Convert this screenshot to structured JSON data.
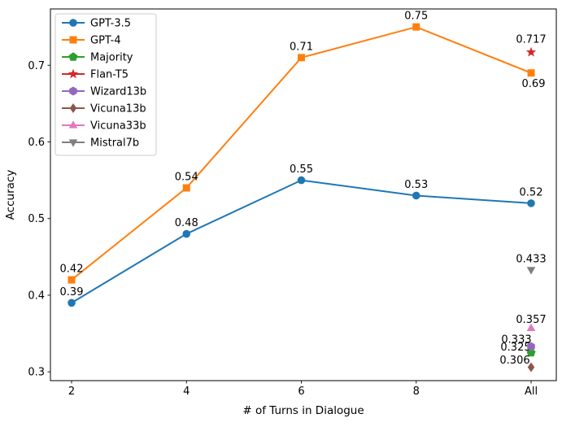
{
  "figure": {
    "background": "#ffffff",
    "spine_color": "#000000"
  },
  "chart_data": {
    "type": "line",
    "title": "",
    "xlabel": "# of Turns in Dialogue",
    "ylabel": "Accuracy",
    "x_tick_labels": [
      "2",
      "4",
      "6",
      "8",
      "All"
    ],
    "y_tick_labels": [
      "0.3",
      "0.4",
      "0.5",
      "0.6",
      "0.7"
    ],
    "y_tick_values": [
      0.3,
      0.4,
      0.5,
      0.6,
      0.7
    ],
    "ylim": [
      0.2885,
      0.7735
    ],
    "grid": false,
    "legend_position": "upper-left",
    "series": [
      {
        "name": "GPT-3.5",
        "color": "#1f77b4",
        "marker": "circle",
        "line": true,
        "x": [
          0,
          1,
          2,
          3,
          4
        ],
        "values": [
          0.39,
          0.48,
          0.55,
          0.53,
          0.52
        ],
        "labels": [
          "0.39",
          "0.48",
          "0.55",
          "0.53",
          "0.52"
        ],
        "label_offsets": {}
      },
      {
        "name": "GPT-4",
        "color": "#ff7f0e",
        "marker": "square",
        "line": true,
        "x": [
          0,
          1,
          2,
          3,
          4
        ],
        "values": [
          0.42,
          0.54,
          0.71,
          0.75,
          0.69
        ],
        "labels": [
          "0.42",
          "0.54",
          "0.71",
          "0.75",
          "0.69"
        ],
        "label_offsets": {
          "4": [
            3,
            13
          ]
        }
      },
      {
        "name": "Majority",
        "color": "#2ca02c",
        "marker": "pentagon",
        "line": false,
        "x": [
          4
        ],
        "values": [
          0.325
        ],
        "labels": [
          "0.325"
        ],
        "label_offsets": {
          "0": [
            -19,
            -7
          ]
        }
      },
      {
        "name": "Flan-T5",
        "color": "#d62728",
        "marker": "star",
        "line": false,
        "x": [
          4
        ],
        "values": [
          0.717
        ],
        "labels": [
          "0.717"
        ],
        "label_offsets": {
          "0": [
            0,
            -16
          ]
        }
      },
      {
        "name": "Wizard13b",
        "color": "#9467bd",
        "marker": "hexagon",
        "line": false,
        "x": [
          4
        ],
        "values": [
          0.333
        ],
        "labels": [
          "0.333"
        ],
        "label_offsets": {
          "0": [
            -18,
            -9
          ]
        }
      },
      {
        "name": "Vicuna13b",
        "color": "#8c564b",
        "marker": "diamond",
        "line": false,
        "x": [
          4
        ],
        "values": [
          0.306
        ],
        "labels": [
          "0.306"
        ],
        "label_offsets": {
          "0": [
            -20,
            -9
          ]
        }
      },
      {
        "name": "Vicuna33b",
        "color": "#e377c2",
        "marker": "triangle-up",
        "line": false,
        "x": [
          4
        ],
        "values": [
          0.357
        ],
        "labels": [
          "0.357"
        ],
        "label_offsets": {
          "0": [
            0,
            -11
          ]
        }
      },
      {
        "name": "Mistral7b",
        "color": "#7f7f7f",
        "marker": "triangle-down",
        "line": false,
        "x": [
          4
        ],
        "values": [
          0.433
        ],
        "labels": [
          "0.433"
        ],
        "label_offsets": {}
      }
    ]
  }
}
